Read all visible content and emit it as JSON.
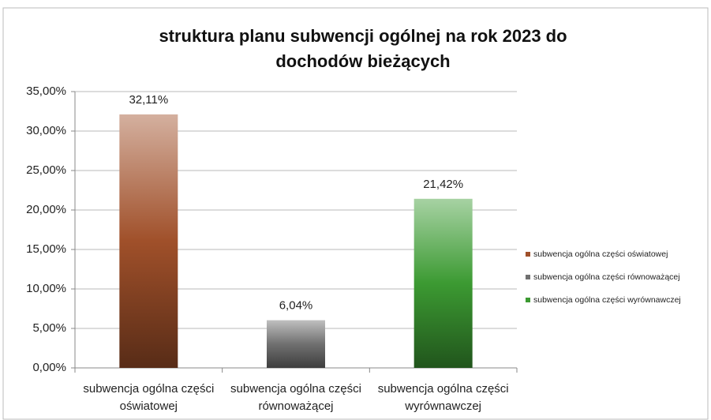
{
  "chart_data": {
    "type": "bar",
    "title": "struktura planu subwencji ogólnej na rok 2023 do dochodów bieżących",
    "categories": [
      "subwencja ogólna części oświatowej",
      "subwencja ogólna części równoważącej",
      "subwencja ogólna części wyrównawczej"
    ],
    "values": [
      32.11,
      6.04,
      21.42
    ],
    "value_labels": [
      "32,11%",
      "6,04%",
      "21,42%"
    ],
    "colors": [
      "#a0502a",
      "#707070",
      "#3c9a32"
    ],
    "ylim": [
      0,
      35
    ],
    "yticks": [
      {
        "value": 0,
        "label": "0,00%"
      },
      {
        "value": 5,
        "label": "5,00%"
      },
      {
        "value": 10,
        "label": "10,00%"
      },
      {
        "value": 15,
        "label": "15,00%"
      },
      {
        "value": 20,
        "label": "20,00%"
      },
      {
        "value": 25,
        "label": "25,00%"
      },
      {
        "value": 30,
        "label": "30,00%"
      },
      {
        "value": 35,
        "label": "35,00%"
      }
    ],
    "grid": true,
    "legend": "right"
  }
}
